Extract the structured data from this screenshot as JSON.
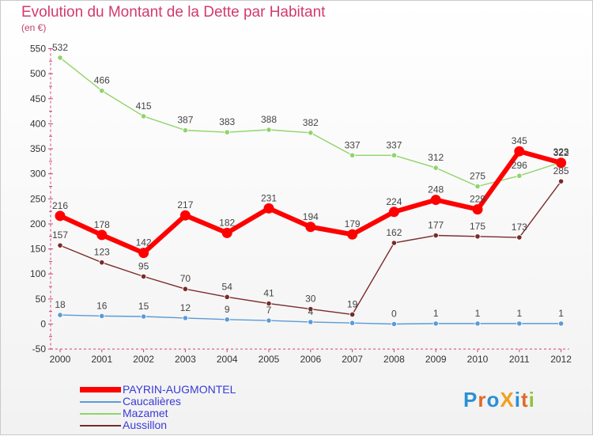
{
  "chart_data": {
    "type": "line",
    "title": "Evolution du Montant de la Dette par Habitant",
    "subtitle": "(en €)",
    "x": [
      "2000",
      "2001",
      "2002",
      "2003",
      "2004",
      "2005",
      "2006",
      "2007",
      "2008",
      "2009",
      "2010",
      "2011",
      "2012"
    ],
    "ylim": [
      -50,
      550
    ],
    "yticks": [
      -50,
      0,
      50,
      100,
      150,
      200,
      250,
      300,
      350,
      400,
      450,
      500,
      550
    ],
    "grid": false,
    "legend_position": "bottom-left",
    "series": [
      {
        "name": "PAYRIN-AUGMONTEL",
        "color": "#ff0000",
        "values": [
          216,
          178,
          142,
          217,
          182,
          231,
          194,
          179,
          224,
          248,
          229,
          345,
          322
        ]
      },
      {
        "name": "Caucalières",
        "color": "#5b9bd5",
        "values": [
          18,
          16,
          15,
          12,
          9,
          7,
          4,
          2,
          0,
          1,
          1,
          1,
          1
        ]
      },
      {
        "name": "Mazamet",
        "color": "#8fd46a",
        "values": [
          532,
          466,
          415,
          387,
          383,
          388,
          382,
          337,
          337,
          312,
          275,
          296,
          323
        ]
      },
      {
        "name": "Aussillon",
        "color": "#7a2a2a",
        "values": [
          157,
          123,
          95,
          70,
          54,
          41,
          30,
          19,
          162,
          177,
          175,
          173,
          285
        ]
      }
    ],
    "value_labels": {
      "Caucalières": [
        "18",
        "16",
        "15",
        "12",
        "9",
        "7",
        "4",
        "",
        "0",
        "1",
        "1",
        "1",
        "1"
      ]
    }
  },
  "logo": {
    "text": "ProXiti",
    "letter_colors": [
      "#2b8fd6",
      "#e06a2a",
      "#2b8fd6",
      "#f0a020",
      "#2b8fd6",
      "#e06a2a",
      "#8fc43a"
    ]
  }
}
